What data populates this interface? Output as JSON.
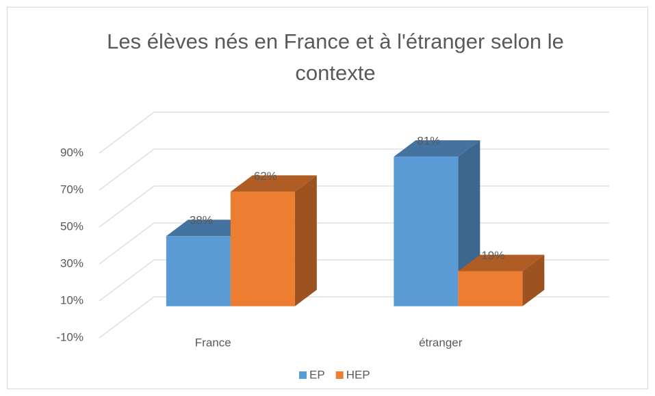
{
  "chart_data": {
    "type": "bar3d",
    "title": "Les élèves nés en France et à l'étranger selon le contexte",
    "categories": [
      "France",
      "étranger"
    ],
    "series": [
      {
        "name": "EP",
        "color": "#5b9bd5",
        "values": [
          38,
          81
        ],
        "value_labels": [
          "38%",
          "81%"
        ]
      },
      {
        "name": "HEP",
        "color": "#ed7d31",
        "values": [
          62,
          19
        ],
        "value_labels": [
          "62%",
          "19%"
        ]
      }
    ],
    "ylim": [
      -10,
      90
    ],
    "yticks": [
      {
        "value": -10,
        "label": "-10%"
      },
      {
        "value": 10,
        "label": "10%"
      },
      {
        "value": 30,
        "label": "30%"
      },
      {
        "value": 50,
        "label": "50%"
      },
      {
        "value": 70,
        "label": "70%"
      },
      {
        "value": 90,
        "label": "90%"
      }
    ],
    "grid": true,
    "legend": "bottom"
  }
}
